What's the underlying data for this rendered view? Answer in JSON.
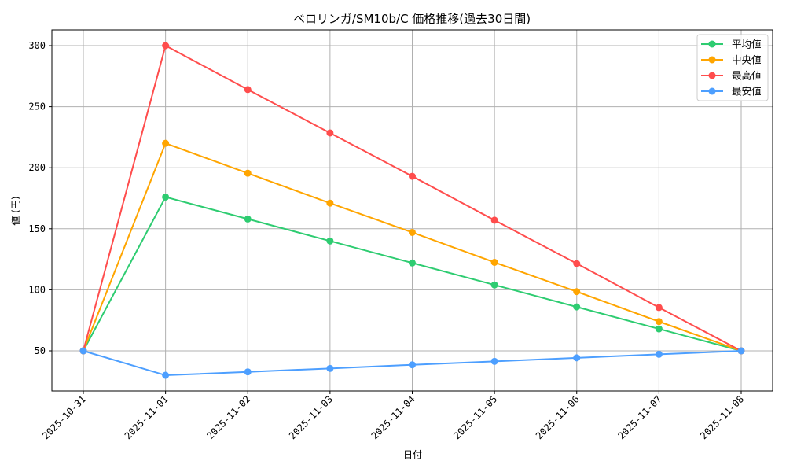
{
  "chart_data": {
    "type": "line",
    "title": "ベロリンガ/SM10b/C 価格推移(過去30日間)",
    "xlabel": "日付",
    "ylabel": "値 (円)",
    "categories": [
      "2025-10-31",
      "2025-11-01",
      "2025-11-02",
      "2025-11-03",
      "2025-11-04",
      "2025-11-05",
      "2025-11-06",
      "2025-11-07",
      "2025-11-08"
    ],
    "yticks": [
      50,
      100,
      150,
      200,
      250,
      300
    ],
    "ylim": [
      16,
      313
    ],
    "grid": true,
    "legend_position": "upper right",
    "series": [
      {
        "name": "平均値",
        "color": "#2ecc71",
        "values": [
          50,
          176,
          158,
          140,
          122,
          104,
          86,
          68,
          50
        ]
      },
      {
        "name": "中央値",
        "color": "#ffa500",
        "values": [
          50,
          220,
          195.5,
          171,
          147,
          122.5,
          98.5,
          74,
          50
        ]
      },
      {
        "name": "最高値",
        "color": "#ff4d4d",
        "values": [
          50,
          300,
          264,
          228.5,
          193,
          157,
          121.5,
          85.5,
          50
        ]
      },
      {
        "name": "最安値",
        "color": "#4d9fff",
        "values": [
          50,
          30,
          32.8,
          35.6,
          38.6,
          41.4,
          44.3,
          47.2,
          50
        ]
      }
    ]
  }
}
